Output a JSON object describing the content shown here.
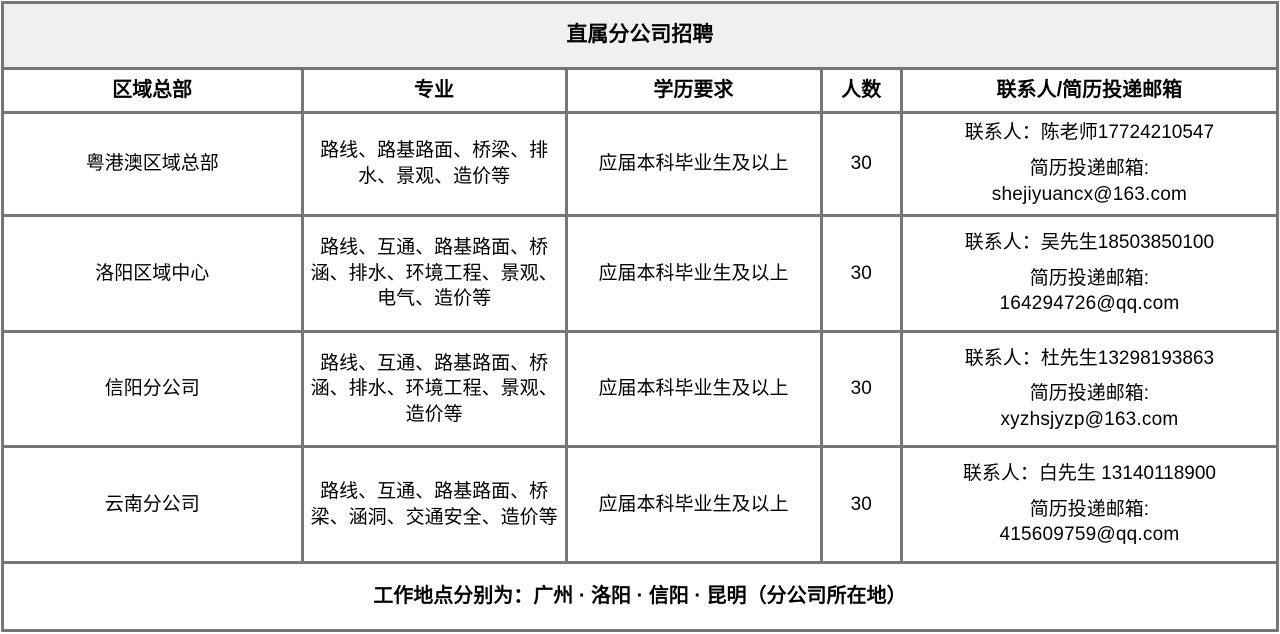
{
  "table": {
    "title": "直属分公司招聘",
    "columns": {
      "region": "区域总部",
      "majors": "专业",
      "education": "学历要求",
      "headcount": "人数",
      "contact": "联系人/简历投递邮箱"
    },
    "rows": [
      {
        "region": "粤港澳区域总部",
        "majors": "路线、路基路面、桥梁、排水、景观、造价等",
        "education": "应届本科毕业生及以上",
        "headcount": "30",
        "contact": "联系人：陈老师17724210547",
        "email_label": "简历投递邮箱:",
        "email": "shejiyuancx@163.com"
      },
      {
        "region": "洛阳区域中心",
        "majors": "路线、互通、路基路面、桥涵、排水、环境工程、景观、电气、造价等",
        "education": "应届本科毕业生及以上",
        "headcount": "30",
        "contact": "联系人：吴先生18503850100",
        "email_label": "简历投递邮箱:",
        "email": "164294726@qq.com"
      },
      {
        "region": "信阳分公司",
        "majors": "路线、互通、路基路面、桥涵、排水、环境工程、景观、造价等",
        "education": "应届本科毕业生及以上",
        "headcount": "30",
        "contact": "联系人：杜先生13298193863",
        "email_label": "简历投递邮箱:",
        "email": "xyzhsjyzp@163.com"
      },
      {
        "region": "云南分公司",
        "majors": "路线、互通、路基路面、桥梁、涵洞、交通安全、造价等",
        "education": "应届本科毕业生及以上",
        "headcount": "30",
        "contact": "联系人：白先生 13140118900",
        "email_label": "简历投递邮箱:",
        "email": "415609759@qq.com"
      }
    ],
    "footer": "工作地点分别为：广州 · 洛阳 · 信阳 · 昆明（分公司所在地）"
  },
  "colors": {
    "border": "#767676",
    "title_background": "#f0f0f0",
    "body_background": "#ffffff",
    "text": "#000000"
  }
}
